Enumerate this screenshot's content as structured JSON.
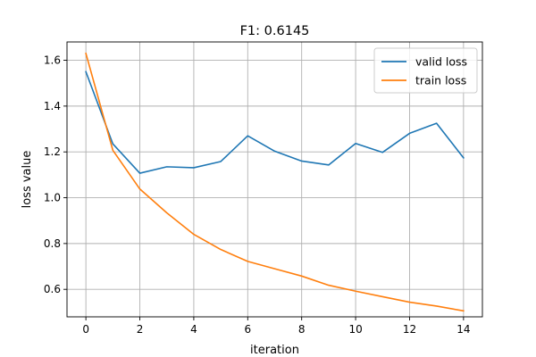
{
  "chart_data": {
    "type": "line",
    "title": "F1: 0.6145",
    "xlabel": "iteration",
    "ylabel": "loss value",
    "x": [
      0,
      1,
      2,
      3,
      4,
      5,
      6,
      7,
      8,
      9,
      10,
      11,
      12,
      13,
      14
    ],
    "xlim": [
      -0.7,
      14.7
    ],
    "ylim": [
      0.48,
      1.68
    ],
    "xticks": [
      0,
      2,
      4,
      6,
      8,
      10,
      12,
      14
    ],
    "yticks": [
      0.6,
      0.8,
      1.0,
      1.2,
      1.4,
      1.6
    ],
    "xtick_labels": [
      "0",
      "2",
      "4",
      "6",
      "8",
      "10",
      "12",
      "14"
    ],
    "ytick_labels": [
      "0.6",
      "0.8",
      "1.0",
      "1.2",
      "1.4",
      "1.6"
    ],
    "grid": true,
    "legend_position": "top-right",
    "series": [
      {
        "name": "valid loss",
        "color": "#1f77b4",
        "values": [
          1.55,
          1.235,
          1.107,
          1.135,
          1.131,
          1.158,
          1.27,
          1.203,
          1.16,
          1.143,
          1.237,
          1.198,
          1.281,
          1.325,
          1.174
        ]
      },
      {
        "name": "train loss",
        "color": "#ff7f0e",
        "values": [
          1.63,
          1.207,
          1.038,
          0.934,
          0.84,
          0.774,
          0.722,
          0.69,
          0.658,
          0.618,
          0.592,
          0.568,
          0.544,
          0.527,
          0.506
        ]
      }
    ]
  }
}
